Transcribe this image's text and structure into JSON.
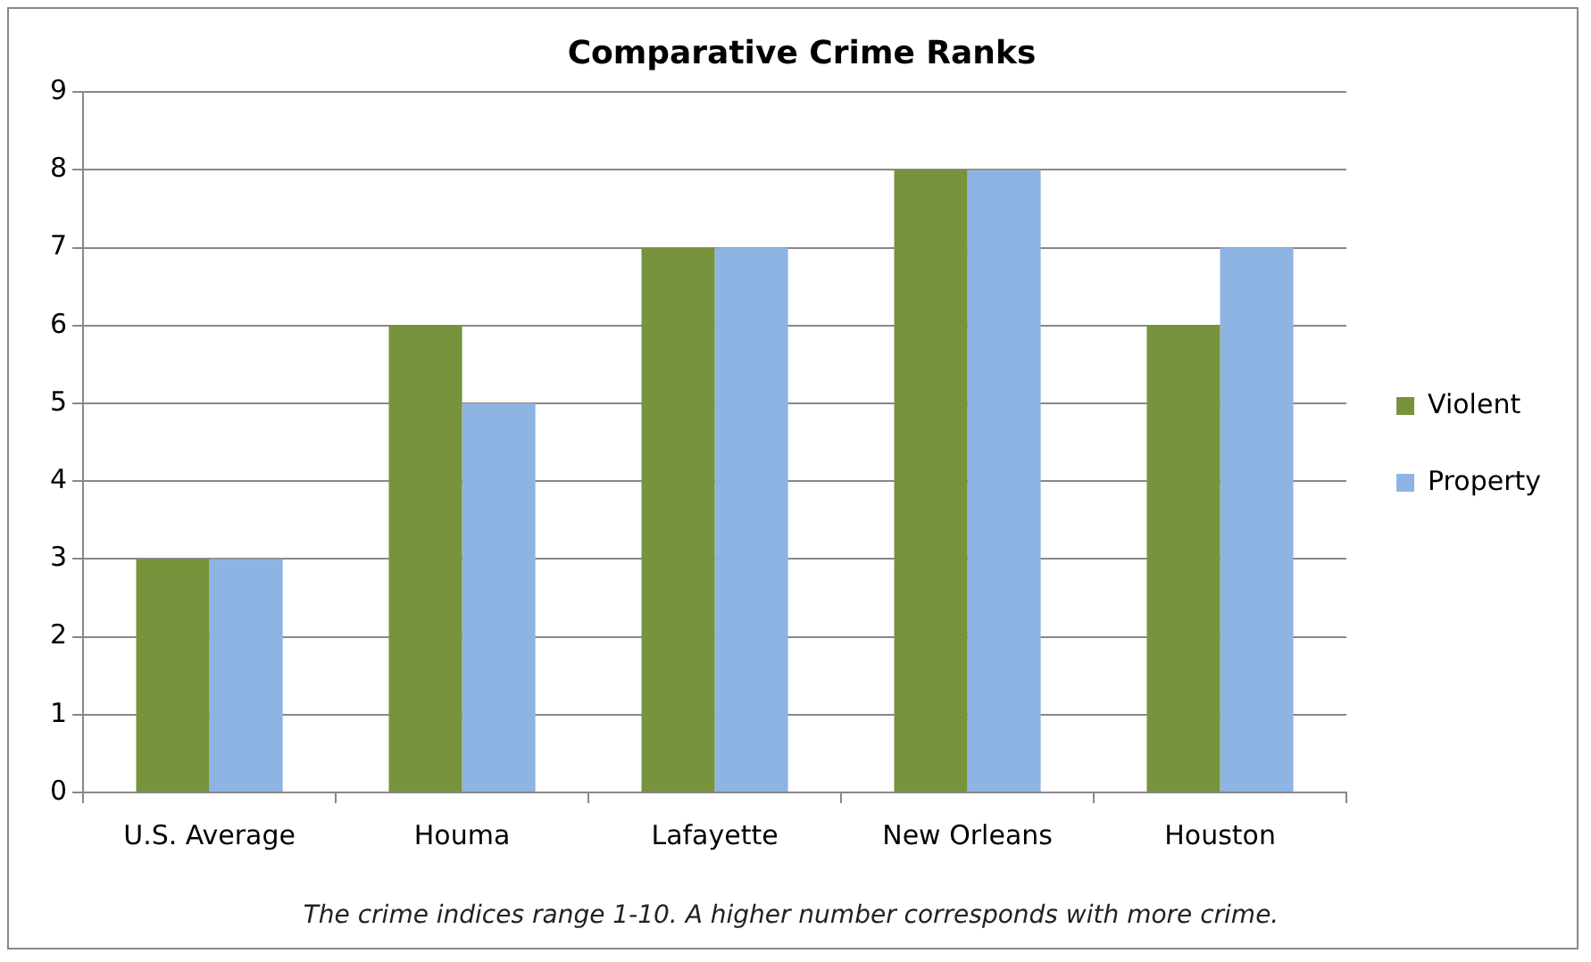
{
  "chart_data": {
    "type": "bar",
    "title": "Comparative Crime Ranks",
    "categories": [
      "U.S. Average",
      "Houma",
      "Lafayette",
      "New Orleans",
      "Houston"
    ],
    "series": [
      {
        "name": "Violent",
        "color": "#77933c",
        "values": [
          3,
          6,
          7,
          8,
          6
        ]
      },
      {
        "name": "Property",
        "color": "#8eb4e3",
        "values": [
          3,
          5,
          7,
          8,
          7
        ]
      }
    ],
    "ylim": [
      0,
      9
    ],
    "yticks": [
      0,
      1,
      2,
      3,
      4,
      5,
      6,
      7,
      8,
      9
    ],
    "grid": "y",
    "legend": "right",
    "annotations": [
      "The crime indices range 1-10. A higher number corresponds with more crime."
    ]
  }
}
